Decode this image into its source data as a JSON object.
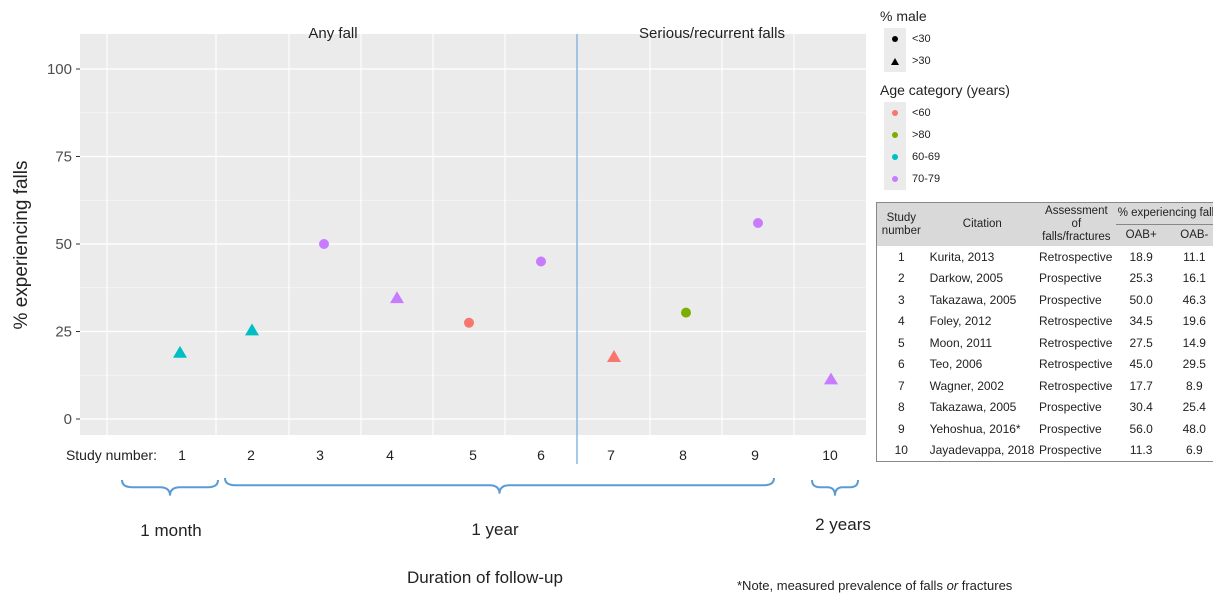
{
  "chart_data": {
    "type": "scatter",
    "panels": [
      "Any fall",
      "Serious/recurrent falls"
    ],
    "ylabel": "% experiencing falls",
    "xlabel": "Duration of follow-up",
    "x_prefix_label": "Study number:",
    "ylim": [
      0,
      100
    ],
    "yticks": [
      0,
      25,
      50,
      75,
      100
    ],
    "grid": true,
    "points": [
      {
        "study": 1,
        "label": "1",
        "y": 18.9,
        "shape": "triangle",
        "age": "60-69"
      },
      {
        "study": 2,
        "label": "2",
        "y": 25.3,
        "shape": "triangle",
        "age": "60-69"
      },
      {
        "study": 3,
        "label": "3",
        "y": 50.0,
        "shape": "circle",
        "age": "70-79"
      },
      {
        "study": 4,
        "label": "4",
        "y": 34.5,
        "shape": "triangle",
        "age": "70-79"
      },
      {
        "study": 5,
        "label": "5",
        "y": 27.5,
        "shape": "circle",
        "age": "<60"
      },
      {
        "study": 6,
        "label": "6",
        "y": 45.0,
        "shape": "circle",
        "age": "70-79"
      },
      {
        "study": 7,
        "label": "7",
        "y": 17.7,
        "shape": "triangle",
        "age": "<60"
      },
      {
        "study": 8,
        "label": "8",
        "y": 30.4,
        "shape": "circle",
        "age": ">80"
      },
      {
        "study": 9,
        "label": "9",
        "y": 56.0,
        "shape": "circle",
        "age": "70-79"
      },
      {
        "study": 10,
        "label": "10",
        "y": 11.3,
        "shape": "triangle",
        "age": "70-79"
      }
    ],
    "durations": [
      {
        "label": "1 month",
        "from": 1,
        "to": 1
      },
      {
        "label": "1 year",
        "from": 2,
        "to": 9
      },
      {
        "label": "2 years",
        "from": 10,
        "to": 10
      }
    ],
    "age_colors": {
      "<60": "#f8766d",
      ">80": "#7cae00",
      "60-69": "#00bfc4",
      "70-79": "#c77cff"
    }
  },
  "legend": {
    "male_title": "% male",
    "male_items": [
      {
        "label": "<30",
        "shape": "circle"
      },
      {
        "label": ">30",
        "shape": "triangle"
      }
    ],
    "age_title": "Age category (years)",
    "age_items": [
      {
        "label": "<60",
        "color": "#f8766d"
      },
      {
        "label": ">80",
        "color": "#7cae00"
      },
      {
        "label": "60-69",
        "color": "#00bfc4"
      },
      {
        "label": "70-79",
        "color": "#c77cff"
      }
    ]
  },
  "table": {
    "headers": {
      "study": "Study number",
      "citation": "Citation",
      "assessment": "Assessment of falls/fractures",
      "pct": "% experiencing falls",
      "pos": "OAB+",
      "neg": "OAB-"
    },
    "rows": [
      {
        "num": "1",
        "citation": "Kurita, 2013",
        "assessment": "Retrospective",
        "pos": "18.9",
        "neg": "11.1"
      },
      {
        "num": "2",
        "citation": "Darkow, 2005",
        "assessment": "Prospective",
        "pos": "25.3",
        "neg": "16.1"
      },
      {
        "num": "3",
        "citation": "Takazawa, 2005",
        "assessment": "Prospective",
        "pos": "50.0",
        "neg": "46.3"
      },
      {
        "num": "4",
        "citation": "Foley, 2012",
        "assessment": "Retrospective",
        "pos": "34.5",
        "neg": "19.6"
      },
      {
        "num": "5",
        "citation": "Moon, 2011",
        "assessment": "Retrospective",
        "pos": "27.5",
        "neg": "14.9"
      },
      {
        "num": "6",
        "citation": "Teo, 2006",
        "assessment": "Retrospective",
        "pos": "45.0",
        "neg": "29.5"
      },
      {
        "num": "7",
        "citation": "Wagner, 2002",
        "assessment": "Retrospective",
        "pos": "17.7",
        "neg": "8.9"
      },
      {
        "num": "8",
        "citation": "Takazawa, 2005",
        "assessment": "Prospective",
        "pos": "30.4",
        "neg": "25.4"
      },
      {
        "num": "9",
        "citation": "Yehoshua, 2016*",
        "assessment": "Prospective",
        "pos": "56.0",
        "neg": "48.0"
      },
      {
        "num": "10",
        "citation": "Jayadevappa, 2018",
        "assessment": "Prospective",
        "pos": "11.3",
        "neg": "6.9"
      }
    ]
  },
  "footnote": {
    "prefix": "*Note, measured prevalence of falls ",
    "emph": "or",
    "suffix": " fractures"
  }
}
